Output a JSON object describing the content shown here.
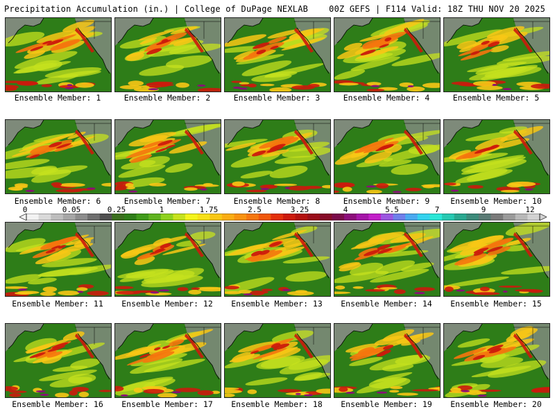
{
  "header": {
    "left": "Precipitation Accumulation (in.) | College of DuPage NEXLAB",
    "right": "00Z GEFS | F114 Valid: 18Z THU NOV 20 2025"
  },
  "panels": [
    {
      "label": "Ensemble Member: 1"
    },
    {
      "label": "Ensemble Member: 2"
    },
    {
      "label": "Ensemble Member: 3"
    },
    {
      "label": "Ensemble Member: 4"
    },
    {
      "label": "Ensemble Member: 5"
    },
    {
      "label": "Ensemble Member: 6"
    },
    {
      "label": "Ensemble Member: 7"
    },
    {
      "label": "Ensemble Member: 8"
    },
    {
      "label": "Ensemble Member: 9"
    },
    {
      "label": "Ensemble Member: 10"
    },
    {
      "label": "Ensemble Member: 11"
    },
    {
      "label": "Ensemble Member: 12"
    },
    {
      "label": "Ensemble Member: 13"
    },
    {
      "label": "Ensemble Member: 14"
    },
    {
      "label": "Ensemble Member: 15"
    },
    {
      "label": "Ensemble Member: 16"
    },
    {
      "label": "Ensemble Member: 17"
    },
    {
      "label": "Ensemble Member: 18"
    },
    {
      "label": "Ensemble Member: 19"
    },
    {
      "label": "Ensemble Member: 20"
    }
  ],
  "colorbar": {
    "ticks": [
      "0",
      "0.05",
      "0.25",
      "1",
      "1.75",
      "2.5",
      "3.25",
      "4",
      "5.5",
      "7",
      "9",
      "12"
    ],
    "colors": [
      "#f2f2f2",
      "#d9d9d9",
      "#bdbdbd",
      "#a6a6a6",
      "#8c8c8c",
      "#6e6e6e",
      "#4f4f4f",
      "#3a6e1e",
      "#2e7d18",
      "#3f9a1a",
      "#5fb31f",
      "#8fd11f",
      "#c6e21d",
      "#f4f41c",
      "#f7e019",
      "#f8c715",
      "#f9ad12",
      "#f8920f",
      "#f5760d",
      "#f0570b",
      "#e3300a",
      "#cc1a0c",
      "#b3100f",
      "#9a0c1a",
      "#860a28",
      "#7a0a4a",
      "#8c0c7a",
      "#a514a8",
      "#c21ec8",
      "#9b56e0",
      "#6f7fea",
      "#4aa9ef",
      "#34d2ee",
      "#2ae6d6",
      "#27c9b2",
      "#2aa890",
      "#3c8a7a",
      "#5a7a74",
      "#7a7a7a",
      "#9a9a9a",
      "#b8b8b8",
      "#d2d2d2"
    ]
  },
  "colors": {
    "ocean": "#2e7d18",
    "land": "#8c8c8c",
    "light": "#c6e21d",
    "moderate": "#f8c715",
    "heavy": "#f5760d",
    "intense": "#cc1a0c",
    "extreme": "#8c0c7a",
    "coast": "#000000"
  }
}
